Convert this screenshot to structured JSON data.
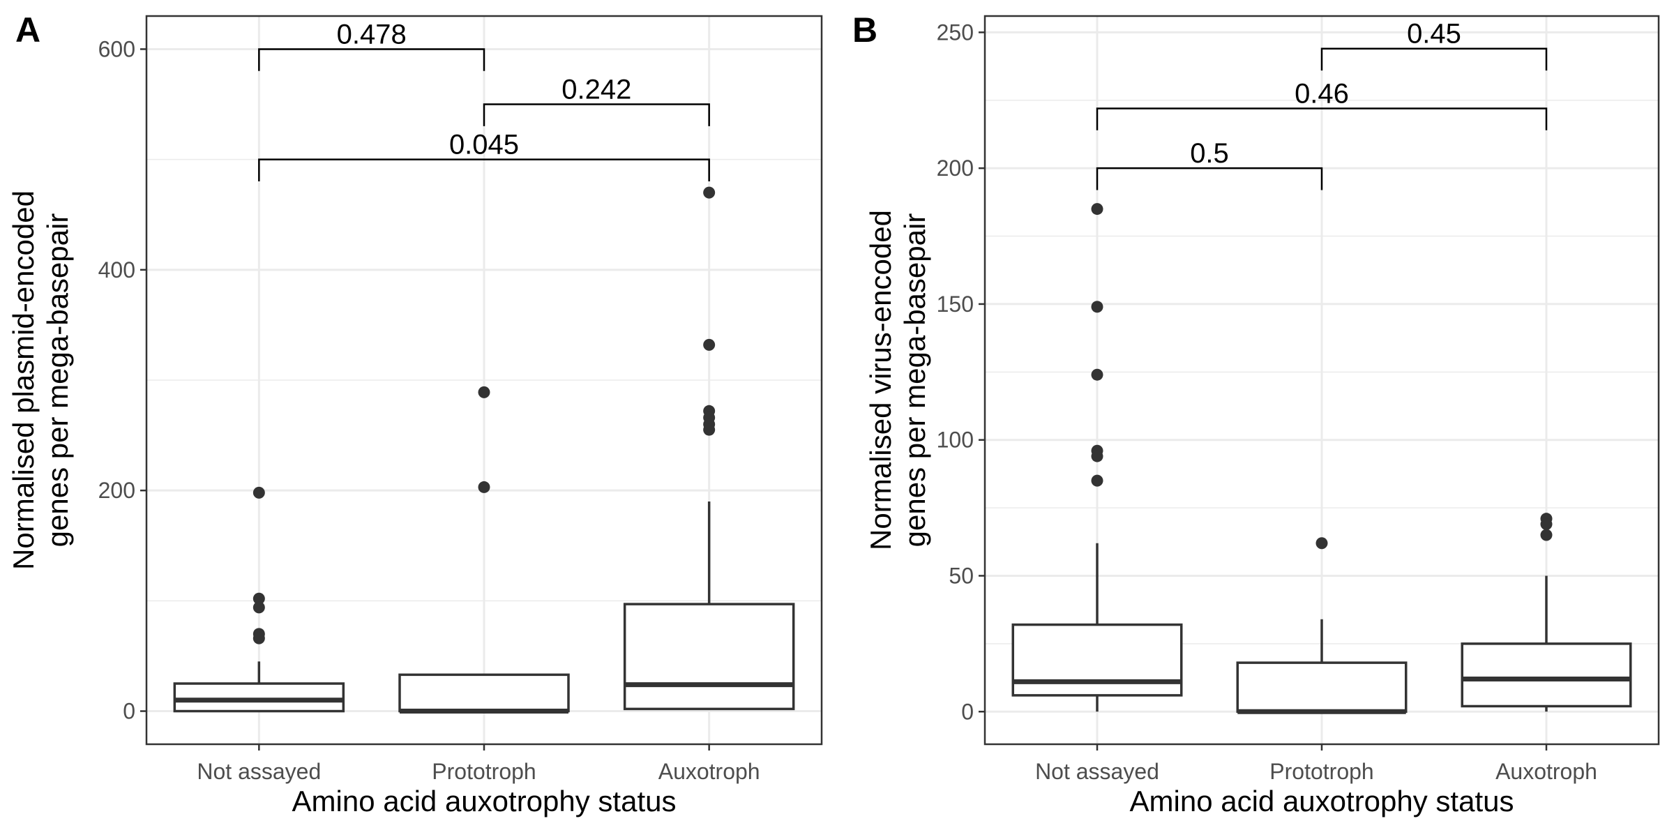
{
  "chart_data": [
    {
      "type": "box",
      "panel_label": "A",
      "xlabel": "Amino acid auxotrophy status",
      "ylabel": [
        "Normalised plasmid-encoded",
        "genes per mega-basepair"
      ],
      "categories": [
        "Not assayed",
        "Prototroph",
        "Auxotroph"
      ],
      "ylim": [
        -30,
        630
      ],
      "yticks": [
        0,
        200,
        400,
        600
      ],
      "grid": true,
      "boxes": [
        {
          "category": "Not assayed",
          "lower_whisker": 0,
          "q1": 0,
          "median": 10,
          "q3": 25,
          "upper_whisker": 45,
          "outliers": [
            198,
            102,
            94,
            70,
            66
          ]
        },
        {
          "category": "Prototroph",
          "lower_whisker": 0,
          "q1": 0,
          "median": 0,
          "q3": 33,
          "upper_whisker": 33,
          "outliers": [
            289,
            203
          ]
        },
        {
          "category": "Auxotroph",
          "lower_whisker": 2,
          "q1": 2,
          "median": 24,
          "q3": 97,
          "upper_whisker": 190,
          "outliers": [
            470,
            332,
            272,
            266,
            260,
            255
          ]
        }
      ],
      "comparisons": [
        {
          "from": "Not assayed",
          "to": "Prototroph",
          "p": "0.478",
          "y": 600
        },
        {
          "from": "Prototroph",
          "to": "Auxotroph",
          "p": "0.242",
          "y": 550
        },
        {
          "from": "Not assayed",
          "to": "Auxotroph",
          "p": "0.045",
          "y": 500
        }
      ]
    },
    {
      "type": "box",
      "panel_label": "B",
      "xlabel": "Amino acid auxotrophy status",
      "ylabel": [
        "Normalised virus-encoded",
        "genes per mega-basepair"
      ],
      "categories": [
        "Not assayed",
        "Prototroph",
        "Auxotroph"
      ],
      "ylim": [
        -12,
        256
      ],
      "yticks": [
        0,
        50,
        100,
        150,
        200,
        250
      ],
      "grid": true,
      "boxes": [
        {
          "category": "Not assayed",
          "lower_whisker": 0,
          "q1": 6,
          "median": 11,
          "q3": 32,
          "upper_whisker": 62,
          "outliers": [
            185,
            149,
            124,
            96,
            94,
            85
          ]
        },
        {
          "category": "Prototroph",
          "lower_whisker": 0,
          "q1": 0,
          "median": 0,
          "q3": 18,
          "upper_whisker": 34,
          "outliers": [
            62
          ]
        },
        {
          "category": "Auxotroph",
          "lower_whisker": 0,
          "q1": 2,
          "median": 12,
          "q3": 25,
          "upper_whisker": 50,
          "outliers": [
            71,
            69,
            65
          ]
        }
      ],
      "comparisons": [
        {
          "from": "Prototroph",
          "to": "Auxotroph",
          "p": "0.45",
          "y": 244
        },
        {
          "from": "Not assayed",
          "to": "Auxotroph",
          "p": "0.46",
          "y": 222
        },
        {
          "from": "Not assayed",
          "to": "Prototroph",
          "p": "0.5",
          "y": 200
        }
      ]
    }
  ]
}
